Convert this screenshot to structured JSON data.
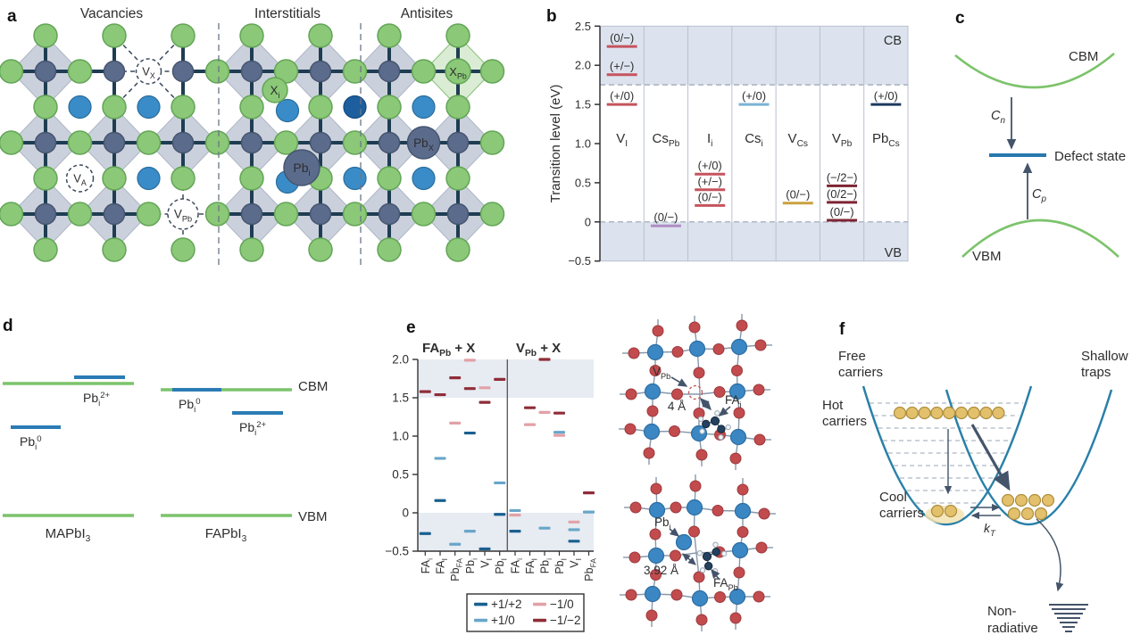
{
  "figure_title": "Defects in halide perovskites figure",
  "colors": {
    "green_atom": "#8bc878",
    "green_atom_border": "#63a557",
    "slate_atom": "#5b6b8c",
    "slate_atom_border": "#46556f",
    "blue_atom": "#3a8cc8",
    "blue_atom_border": "#2a6e9e",
    "dark_blue_atom": "#1d5e9e",
    "octahedron": "#c9cfdb",
    "octahedron_border": "#a9b2c2",
    "octahedron_green": "#d9ecd2",
    "octahedron_green_border": "#84bd74",
    "bond": "#1f3d52",
    "band_shade": "#dde3ee",
    "crimson": "#c5545e",
    "purple": "#b08cc4",
    "lightblue": "#7ab3d4",
    "gold": "#c9a23f",
    "maroon": "#7d2433",
    "navy": "#1e3a5f",
    "green_line": "#7cc36b",
    "blue_line": "#2b7bb5",
    "s1": "#19608f",
    "s2": "#68a6c9",
    "s3": "#e2a1a7",
    "s4": "#8f2d38",
    "red_atom": "#c24b4e",
    "red_atom_border": "#9c3a3e",
    "struct_blue": "#3b87c3",
    "struct_blue_border": "#2d6da3",
    "struct_bond": "#8798ab",
    "parabola": "#2a80a8",
    "carrier_fill": "#e2c06c",
    "carrier_border": "#ae8d3c",
    "carrier_glow": "#f3e3b0",
    "arrow": "#44546a"
  },
  "panel_a": {
    "letter": "a",
    "sections": [
      "Vacancies",
      "Interstitials",
      "Antisites"
    ],
    "defects": {
      "vx": "V_{X}",
      "va": "V_{A}",
      "vpb": "V_{Pb}",
      "xi": "X_{i}",
      "pbi": "Pb_{i}",
      "pbx": "Pb_{X}",
      "xpb": "X_{Pb}"
    }
  },
  "panel_b": {
    "letter": "b",
    "ylabel": "Transition level (eV)",
    "cb": "CB",
    "vb": "VB",
    "cb_edge": 1.75,
    "vb_edge": 0,
    "ymax": 2.5,
    "ymin": -0.5,
    "yticks": [
      {
        "label": "2.5",
        "v": 2.5
      },
      {
        "label": "2.0",
        "v": 2.0
      },
      {
        "label": "1.5",
        "v": 1.5
      },
      {
        "label": "1.0",
        "v": 1.0
      },
      {
        "label": "0.5",
        "v": 0.5
      },
      {
        "label": "0",
        "v": 0
      },
      {
        "label": "−0.5",
        "v": -0.5
      }
    ],
    "columns": [
      {
        "label": "V_{I}",
        "color_key": "crimson",
        "levels": [
          {
            "label": "(0/−)",
            "v": 2.24
          },
          {
            "label": "(+/−)",
            "v": 1.88
          },
          {
            "label": "(+/0)",
            "v": 1.5
          }
        ]
      },
      {
        "label": "Cs_{Pb}",
        "color_key": "purple",
        "levels": [
          {
            "label": "(0/−)",
            "v": -0.05
          }
        ]
      },
      {
        "label": "I_{i}",
        "color_key": "crimson",
        "levels": [
          {
            "label": "(+/0)",
            "v": 0.61
          },
          {
            "label": "(+/−)",
            "v": 0.41
          },
          {
            "label": "(0/−)",
            "v": 0.21
          }
        ]
      },
      {
        "label": "Cs_{i}",
        "color_key": "lightblue",
        "levels": [
          {
            "label": "(+/0)",
            "v": 1.5
          }
        ]
      },
      {
        "label": "V_{Cs}",
        "color_key": "gold",
        "levels": [
          {
            "label": "(0/−)",
            "v": 0.24
          }
        ]
      },
      {
        "label": "V_{Pb}",
        "color_key": "maroon",
        "levels": [
          {
            "label": "(−/2−)",
            "v": 0.46
          },
          {
            "label": "(0/2−)",
            "v": 0.25
          },
          {
            "label": "(0/−)",
            "v": 0.02
          }
        ]
      },
      {
        "label": "Pb_{Cs}",
        "color_key": "navy",
        "levels": [
          {
            "label": "(+/0)",
            "v": 1.5
          }
        ]
      }
    ]
  },
  "panel_c": {
    "letter": "c",
    "cbm": "CBM",
    "vbm": "VBM",
    "defect_state": "Defect state",
    "cn": "C_{n}",
    "cp": "C_{p}"
  },
  "panel_d": {
    "letter": "d",
    "cbm": "CBM",
    "vbm": "VBM",
    "groups": [
      {
        "name": "MAPbI_{3}",
        "levels": [
          {
            "label": "Pb_{i}^{2+}"
          },
          {
            "label": "Pb_{i}^{0}"
          }
        ]
      },
      {
        "name": "FAPbI_{3}",
        "levels": [
          {
            "label": "Pb_{i}^{0}"
          },
          {
            "label": "Pb_{i}^{2+}"
          }
        ]
      }
    ]
  },
  "panel_e": {
    "letter": "e",
    "cb_edge": 1.5,
    "vb_edge": 0,
    "ymax": 2.0,
    "ymin": -0.5,
    "yticks": [
      {
        "label": "2.0",
        "v": 2.0
      },
      {
        "label": "1.5",
        "v": 1.5
      },
      {
        "label": "1.0",
        "v": 1.0
      },
      {
        "label": "0.5",
        "v": 0.5
      },
      {
        "label": "0",
        "v": 0
      },
      {
        "label": "−0.5",
        "v": -0.5
      }
    ],
    "legend": [
      {
        "key": "s1",
        "label": "+1/+2"
      },
      {
        "key": "s3",
        "label": "−1/0"
      },
      {
        "key": "s2",
        "label": "+1/0"
      },
      {
        "key": "s4",
        "label": "−1/−2"
      }
    ],
    "groups": [
      {
        "header": "FA_{Pb} + X",
        "columns": [
          {
            "label": "FA_{i}",
            "bars": [
              {
                "s": "s4",
                "v": 1.58
              },
              {
                "s": "s1",
                "v": -0.27
              }
            ]
          },
          {
            "label": "FA_{I}",
            "bars": [
              {
                "s": "s4",
                "v": 1.54
              },
              {
                "s": "s2",
                "v": 0.71
              },
              {
                "s": "s1",
                "v": 0.16
              }
            ]
          },
          {
            "label": "Pb_{FA}",
            "bars": [
              {
                "s": "s4",
                "v": 1.76
              },
              {
                "s": "s3",
                "v": 1.17
              },
              {
                "s": "s2",
                "v": -0.41
              }
            ]
          },
          {
            "label": "Pb_{i}",
            "bars": [
              {
                "s": "s3",
                "v": 1.99
              },
              {
                "s": "s4",
                "v": 1.62
              },
              {
                "s": "s1",
                "v": 1.04
              },
              {
                "s": "s2",
                "v": -0.24
              }
            ]
          },
          {
            "label": "V_{I}",
            "bars": [
              {
                "s": "s3",
                "v": 1.63
              },
              {
                "s": "s4",
                "v": 1.44
              },
              {
                "s": "s1",
                "v": -0.47
              }
            ]
          },
          {
            "label": "Pb_{I}",
            "bars": [
              {
                "s": "s4",
                "v": 1.74
              },
              {
                "s": "s2",
                "v": 0.39
              },
              {
                "s": "s1",
                "v": -0.02
              }
            ]
          }
        ]
      },
      {
        "header": "V_{Pb} + X",
        "columns": [
          {
            "label": "FA_{i}",
            "bars": [
              {
                "s": "s2",
                "v": 0.03
              },
              {
                "s": "s3",
                "v": -0.03
              },
              {
                "s": "s1",
                "v": -0.24
              }
            ]
          },
          {
            "label": "FA_{I}",
            "bars": [
              {
                "s": "s4",
                "v": 1.37
              },
              {
                "s": "s3",
                "v": 1.15
              }
            ]
          },
          {
            "label": "Pb_{i}",
            "bars": [
              {
                "s": "s4",
                "v": 2.0
              },
              {
                "s": "s3",
                "v": 1.31
              },
              {
                "s": "s2",
                "v": -0.2
              }
            ]
          },
          {
            "label": "Pb_{I}",
            "bars": [
              {
                "s": "s4",
                "v": 1.3
              },
              {
                "s": "s2",
                "v": 1.05
              },
              {
                "s": "s3",
                "v": 1.01
              }
            ]
          },
          {
            "label": "V_{I}",
            "bars": [
              {
                "s": "s3",
                "v": -0.12
              },
              {
                "s": "s2",
                "v": -0.22
              },
              {
                "s": "s1",
                "v": -0.37
              }
            ]
          },
          {
            "label": "Pb_{FA}",
            "bars": [
              {
                "s": "s4",
                "v": 0.26
              },
              {
                "s": "s2",
                "v": 0.01
              }
            ]
          }
        ]
      }
    ],
    "structures": {
      "top": {
        "vacancy": "V_{Pb}",
        "dist": "4 Å",
        "interstitial": "FA_{i}"
      },
      "bottom": {
        "interstitial": "Pb_{i}",
        "dist": "3.92 Å",
        "antisite": "FA_{Pb}"
      }
    }
  },
  "panel_f": {
    "letter": "f",
    "free": [
      "Free",
      "carriers"
    ],
    "shallow": [
      "Shallow",
      "traps"
    ],
    "hot": [
      "Hot",
      "carriers"
    ],
    "cool": [
      "Cool",
      "carriers"
    ],
    "kt": "k_{T}",
    "nonradiative": [
      "Non-",
      "radiative"
    ]
  },
  "chart_data": [
    {
      "type": "scatter",
      "title": "Charge transition levels of point defects in CsPbI3 (panel b)",
      "ylabel": "Transition level (eV)",
      "ylim": [
        -0.5,
        2.5
      ],
      "cb_edge": 1.75,
      "vb_edge": 0,
      "categories": [
        "V_I",
        "Cs_Pb",
        "I_i",
        "Cs_i",
        "V_Cs",
        "V_Pb",
        "Pb_Cs"
      ],
      "series": [
        {
          "name": "V_I",
          "points": [
            [
              "(0/−)",
              2.24
            ],
            [
              "(+/−)",
              1.88
            ],
            [
              "(+/0)",
              1.5
            ]
          ]
        },
        {
          "name": "Cs_Pb",
          "points": [
            [
              "(0/−)",
              -0.05
            ]
          ]
        },
        {
          "name": "I_i",
          "points": [
            [
              "(+/0)",
              0.61
            ],
            [
              "(+/−)",
              0.41
            ],
            [
              "(0/−)",
              0.21
            ]
          ]
        },
        {
          "name": "Cs_i",
          "points": [
            [
              "(+/0)",
              1.5
            ]
          ]
        },
        {
          "name": "V_Cs",
          "points": [
            [
              "(0/−)",
              0.24
            ]
          ]
        },
        {
          "name": "V_Pb",
          "points": [
            [
              "(−/2−)",
              0.46
            ],
            [
              "(0/2−)",
              0.25
            ],
            [
              "(0/−)",
              0.02
            ]
          ]
        },
        {
          "name": "Pb_Cs",
          "points": [
            [
              "(+/0)",
              1.5
            ]
          ]
        }
      ]
    },
    {
      "type": "scatter",
      "title": "Transition levels of defect complexes FA_Pb + X and V_Pb + X (panel e)",
      "ylim": [
        -0.5,
        2.0
      ],
      "cb_edge": 1.5,
      "vb_edge": 0,
      "legend": [
        "+1/+2",
        "+1/0",
        "−1/0",
        "−1/−2"
      ],
      "groups": [
        {
          "name": "FA_Pb + X",
          "categories": [
            "FA_i",
            "FA_I",
            "Pb_FA",
            "Pb_i",
            "V_I",
            "Pb_I"
          ],
          "points": [
            [
              "FA_i",
              "−1/−2",
              1.58
            ],
            [
              "FA_i",
              "+1/+2",
              -0.27
            ],
            [
              "FA_I",
              "−1/−2",
              1.54
            ],
            [
              "FA_I",
              "+1/0",
              0.71
            ],
            [
              "FA_I",
              "+1/+2",
              0.16
            ],
            [
              "Pb_FA",
              "−1/−2",
              1.76
            ],
            [
              "Pb_FA",
              "−1/0",
              1.17
            ],
            [
              "Pb_FA",
              "+1/0",
              -0.41
            ],
            [
              "Pb_i",
              "−1/0",
              1.99
            ],
            [
              "Pb_i",
              "−1/−2",
              1.62
            ],
            [
              "Pb_i",
              "+1/+2",
              1.04
            ],
            [
              "Pb_i",
              "+1/0",
              -0.24
            ],
            [
              "V_I",
              "−1/0",
              1.63
            ],
            [
              "V_I",
              "−1/−2",
              1.44
            ],
            [
              "V_I",
              "+1/+2",
              -0.47
            ],
            [
              "Pb_I",
              "−1/−2",
              1.74
            ],
            [
              "Pb_I",
              "+1/0",
              0.39
            ],
            [
              "Pb_I",
              "+1/+2",
              -0.02
            ]
          ]
        },
        {
          "name": "V_Pb + X",
          "categories": [
            "FA_i",
            "FA_I",
            "Pb_i",
            "Pb_I",
            "V_I",
            "Pb_FA"
          ],
          "points": [
            [
              "FA_i",
              "+1/0",
              0.03
            ],
            [
              "FA_i",
              "−1/0",
              -0.03
            ],
            [
              "FA_i",
              "+1/+2",
              -0.24
            ],
            [
              "FA_I",
              "−1/−2",
              1.37
            ],
            [
              "FA_I",
              "−1/0",
              1.15
            ],
            [
              "Pb_i",
              "−1/−2",
              2.0
            ],
            [
              "Pb_i",
              "−1/0",
              1.31
            ],
            [
              "Pb_i",
              "+1/0",
              -0.2
            ],
            [
              "Pb_I",
              "−1/−2",
              1.3
            ],
            [
              "Pb_I",
              "+1/0",
              1.05
            ],
            [
              "Pb_I",
              "−1/0",
              1.01
            ],
            [
              "V_I",
              "−1/0",
              -0.12
            ],
            [
              "V_I",
              "+1/0",
              -0.22
            ],
            [
              "V_I",
              "+1/+2",
              -0.37
            ],
            [
              "Pb_FA",
              "−1/−2",
              0.26
            ],
            [
              "Pb_FA",
              "+1/0",
              0.01
            ]
          ]
        }
      ]
    }
  ]
}
